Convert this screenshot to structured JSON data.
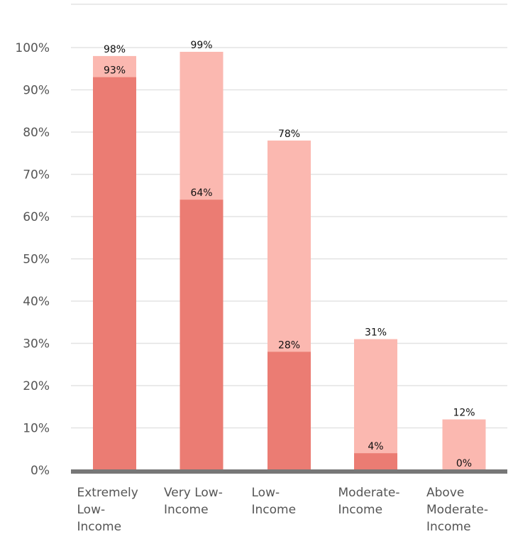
{
  "chart_data": {
    "type": "bar",
    "stacked_overlay": true,
    "categories": [
      [
        "Extremely",
        "Low-",
        "Income"
      ],
      [
        "Very Low-",
        "Income"
      ],
      [
        "Low-",
        "Income"
      ],
      [
        "Moderate-",
        "Income"
      ],
      [
        "Above",
        "Moderate-",
        "Income"
      ]
    ],
    "series": [
      {
        "values": [
          98,
          99,
          78,
          31,
          12
        ],
        "color": "#fbb8b0"
      },
      {
        "values": [
          93,
          64,
          28,
          4,
          0
        ],
        "color": "#eb7c73"
      }
    ],
    "ylim": [
      0,
      100
    ],
    "yticks": [
      0,
      10,
      20,
      30,
      40,
      50,
      60,
      70,
      80,
      90,
      100
    ],
    "ytick_labels": [
      "0%",
      "10%",
      "20%",
      "30%",
      "40%",
      "50%",
      "60%",
      "70%",
      "80%",
      "90%",
      "100%"
    ],
    "value_suffix": "%",
    "grid": true,
    "grid_color": "#e3e3e3",
    "baseline_color": "#777777",
    "title": "",
    "xlabel": "",
    "ylabel": ""
  }
}
